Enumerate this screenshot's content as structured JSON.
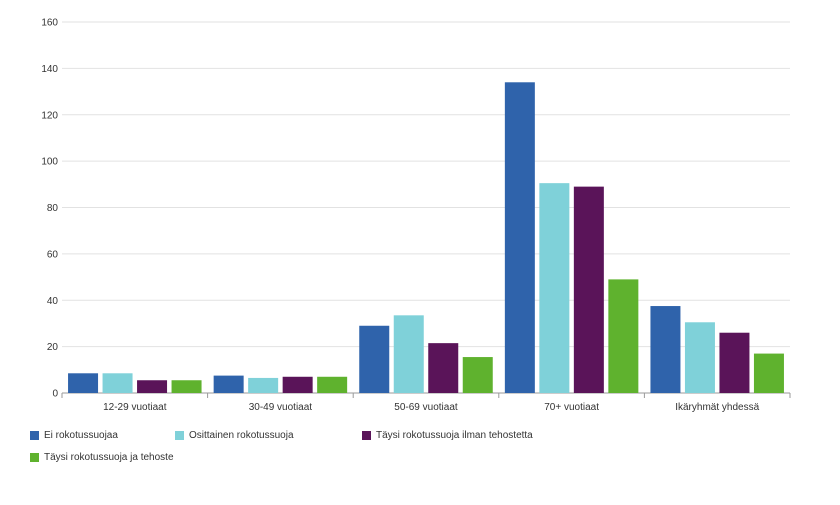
{
  "chart_data": {
    "type": "bar",
    "categories": [
      "12-29 vuotiaat",
      "30-49 vuotiaat",
      "50-69 vuotiaat",
      "70+ vuotiaat",
      "Ikäryhmät yhdessä"
    ],
    "series": [
      {
        "name": "Ei rokotussuojaa",
        "color": "#2f63ab",
        "values": [
          8.5,
          7.5,
          29,
          134,
          37.5
        ]
      },
      {
        "name": "Osittainen rokotussuoja",
        "color": "#7fd1d9",
        "values": [
          8.5,
          6.5,
          33.5,
          90.5,
          30.5
        ]
      },
      {
        "name": "Täysi rokotussuoja ilman tehostetta",
        "color": "#5a1459",
        "values": [
          5.5,
          7,
          21.5,
          89,
          26
        ]
      },
      {
        "name": "Täysi rokotussuoja ja tehoste",
        "color": "#5fb22e",
        "values": [
          5.5,
          7,
          15.5,
          49,
          17
        ]
      }
    ],
    "ylim": [
      0,
      160
    ],
    "yticks": [
      0,
      20,
      40,
      60,
      80,
      100,
      120,
      140,
      160
    ],
    "grid": true,
    "legend_position": "bottom-left"
  }
}
